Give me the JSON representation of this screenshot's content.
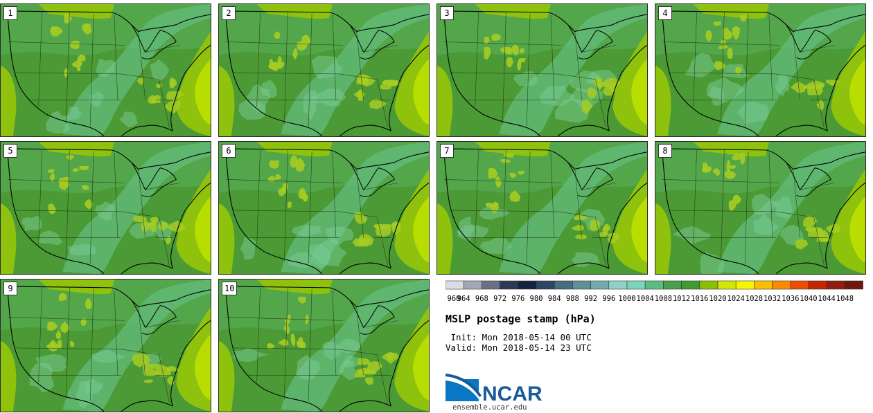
{
  "title": "MSLP postage stamp (hPa)",
  "init_time": " Init: Mon 2018-05-14 00 UTC",
  "valid_time": "Valid: Mon 2018-05-14 23 UTC",
  "members": [
    "1",
    "2",
    "3",
    "4",
    "5",
    "6",
    "7",
    "8",
    "9",
    "10"
  ],
  "colorbar": {
    "ticks": [
      "960",
      "964",
      "968",
      "972",
      "976",
      "980",
      "984",
      "988",
      "992",
      "996",
      "1000",
      "1004",
      "1008",
      "1012",
      "1016",
      "1020",
      "1024",
      "1028",
      "1032",
      "1036",
      "1040",
      "1044",
      "1048"
    ],
    "colors": [
      "#dcdde2",
      "#a2a6b6",
      "#6a7088",
      "#2e3a55",
      "#142340",
      "#2d4663",
      "#476d80",
      "#5f8f98",
      "#74aaac",
      "#8fd1c6",
      "#7bd5bd",
      "#5dbb85",
      "#47a04e",
      "#429a31",
      "#8bbf04",
      "#d3e800",
      "#f7f600",
      "#fcbf00",
      "#fc8a00",
      "#ec4d00",
      "#c42600",
      "#921c10",
      "#6b180f"
    ]
  },
  "logo": {
    "text": "NCAR",
    "url": "ensemble.ucar.edu",
    "color": "#1a5a99"
  },
  "map_colors": {
    "base": "#4b9a35",
    "mid": "#55a84e",
    "light": "#63bb7c",
    "pale": "#7acb96",
    "yellow_green": "#8fc20c",
    "lime": "#b8dd00",
    "highlight": "#a6cc22"
  }
}
